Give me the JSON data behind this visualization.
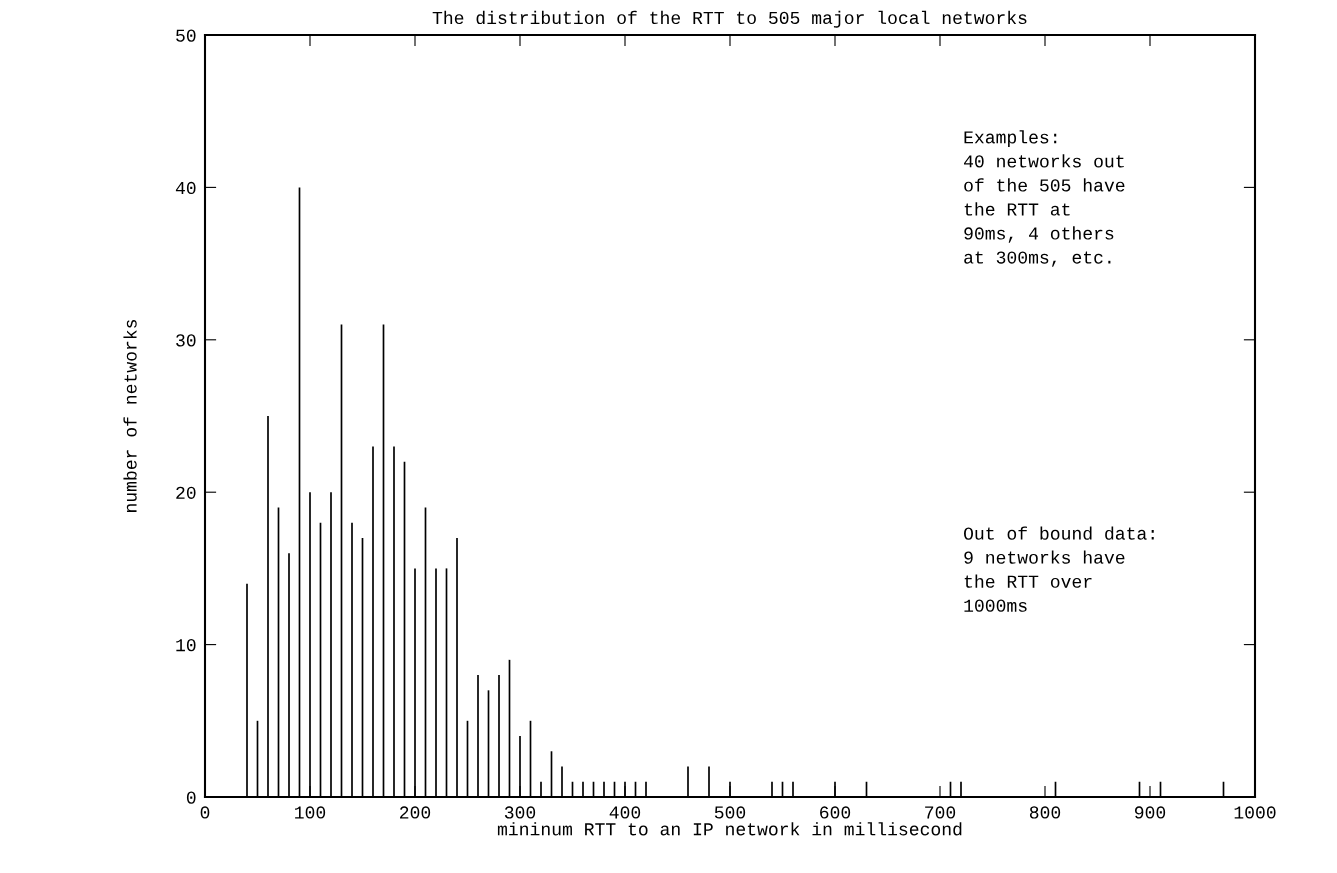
{
  "chart_data": {
    "type": "bar",
    "title": "The distribution of the RTT to 505 major local networks",
    "xlabel": "mininum RTT to an IP network in millisecond",
    "ylabel": "number of networks",
    "x": [
      40,
      50,
      60,
      70,
      80,
      90,
      100,
      110,
      120,
      130,
      140,
      150,
      160,
      170,
      180,
      190,
      200,
      210,
      220,
      230,
      240,
      250,
      260,
      270,
      280,
      290,
      300,
      310,
      320,
      330,
      340,
      350,
      360,
      370,
      380,
      390,
      400,
      410,
      420,
      460,
      480,
      500,
      540,
      550,
      560,
      600,
      630,
      710,
      720,
      810,
      890,
      910,
      970
    ],
    "values": [
      14,
      5,
      25,
      19,
      16,
      40,
      20,
      18,
      20,
      31,
      18,
      17,
      23,
      31,
      23,
      22,
      15,
      19,
      15,
      15,
      17,
      5,
      8,
      7,
      8,
      9,
      4,
      5,
      1,
      3,
      2,
      1,
      1,
      1,
      1,
      1,
      1,
      1,
      1,
      2,
      2,
      1,
      1,
      1,
      1,
      1,
      1,
      1,
      1,
      1,
      1,
      1,
      1
    ],
    "color": "#000000",
    "xlim": [
      0,
      1000
    ],
    "xticks": [
      0,
      100,
      200,
      300,
      400,
      500,
      600,
      700,
      800,
      900,
      1000
    ],
    "ylim": [
      0,
      50
    ],
    "yticks": [
      0,
      10,
      20,
      30,
      40,
      50
    ],
    "grid": false,
    "annotations": [
      "Examples:\n40 networks out\nof the 505 have\nthe RTT at\n90ms, 4 others\nat 300ms, etc.",
      "Out of bound data:\n9 networks have\nthe RTT over\n1000ms"
    ]
  }
}
